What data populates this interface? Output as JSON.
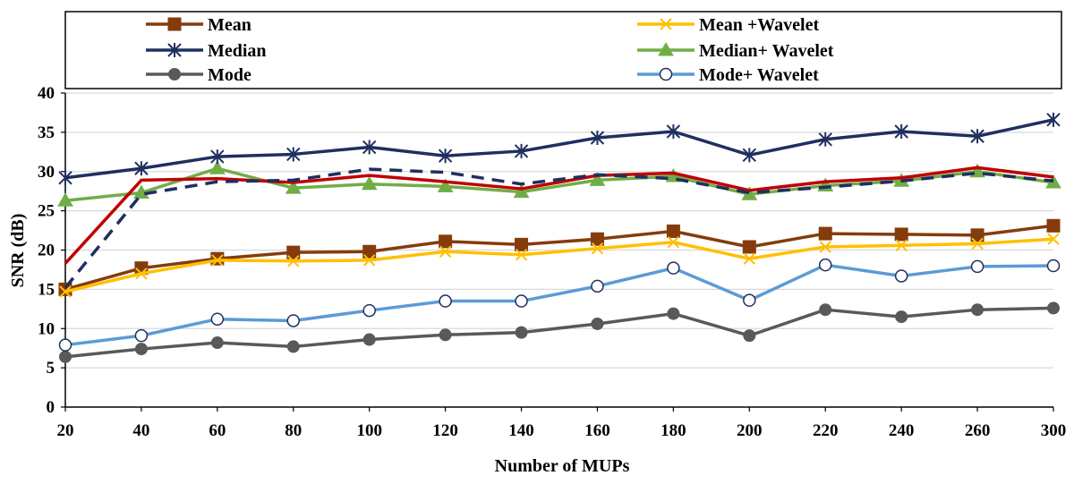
{
  "chart_data": {
    "type": "line",
    "xlabel": "Number of MUPs",
    "ylabel": "SNR (dB)",
    "ylim": [
      0,
      40
    ],
    "yticks": [
      0,
      5,
      10,
      15,
      20,
      25,
      30,
      35,
      40
    ],
    "grid": true,
    "legend_position": "top",
    "categories": [
      "20",
      "40",
      "60",
      "80",
      "100",
      "120",
      "140",
      "160",
      "180",
      "200",
      "220",
      "240",
      "260",
      "300"
    ],
    "series": [
      {
        "name": "Mean",
        "color": "#843c0c",
        "marker": "square",
        "dash": false,
        "values": [
          15.0,
          17.7,
          18.9,
          19.7,
          19.8,
          21.1,
          20.7,
          21.4,
          22.4,
          20.4,
          22.1,
          22.0,
          21.9,
          23.1
        ]
      },
      {
        "name": "Median",
        "color": "#1f2f5f",
        "marker": "asterisk",
        "dash": false,
        "values": [
          29.2,
          30.4,
          31.9,
          32.2,
          33.1,
          32.0,
          32.6,
          34.3,
          35.1,
          32.1,
          34.1,
          35.1,
          34.5,
          36.6
        ]
      },
      {
        "name": "Mode",
        "color": "#595959",
        "marker": "circle-filled",
        "dash": false,
        "values": [
          6.4,
          7.4,
          8.2,
          7.7,
          8.6,
          9.2,
          9.5,
          10.6,
          11.9,
          9.1,
          12.4,
          11.5,
          12.4,
          12.6
        ]
      },
      {
        "name": "Mean +Wavelet",
        "color": "#ffc000",
        "marker": "x",
        "dash": false,
        "values": [
          14.7,
          17.0,
          18.7,
          18.6,
          18.7,
          19.8,
          19.4,
          20.2,
          21.0,
          18.9,
          20.4,
          20.6,
          20.8,
          21.4
        ]
      },
      {
        "name": "Median+ Wavelet",
        "color": "#70ad47",
        "marker": "triangle",
        "dash": false,
        "values": [
          26.3,
          27.3,
          30.4,
          27.9,
          28.4,
          28.1,
          27.4,
          28.9,
          29.4,
          27.1,
          28.2,
          28.8,
          30.0,
          28.6
        ]
      },
      {
        "name": "Mode+ Wavelet",
        "color": "#5b9bd5",
        "marker": "circle-open",
        "dash": false,
        "values": [
          7.9,
          9.1,
          11.2,
          11.0,
          12.3,
          13.5,
          13.5,
          15.4,
          17.7,
          13.6,
          18.1,
          16.7,
          17.9,
          18.0
        ]
      },
      {
        "color": "#c00000",
        "marker": "none",
        "dash": false,
        "values": [
          18.3,
          28.9,
          29.1,
          28.6,
          29.5,
          28.7,
          27.8,
          29.5,
          29.8,
          27.6,
          28.7,
          29.2,
          30.5,
          29.3
        ]
      },
      {
        "color": "#1f2f5f",
        "marker": "none",
        "dash": true,
        "values": [
          15.2,
          27.1,
          28.7,
          28.9,
          30.3,
          29.9,
          28.4,
          29.6,
          29.1,
          27.3,
          28.0,
          28.8,
          29.8,
          28.8
        ]
      }
    ]
  }
}
